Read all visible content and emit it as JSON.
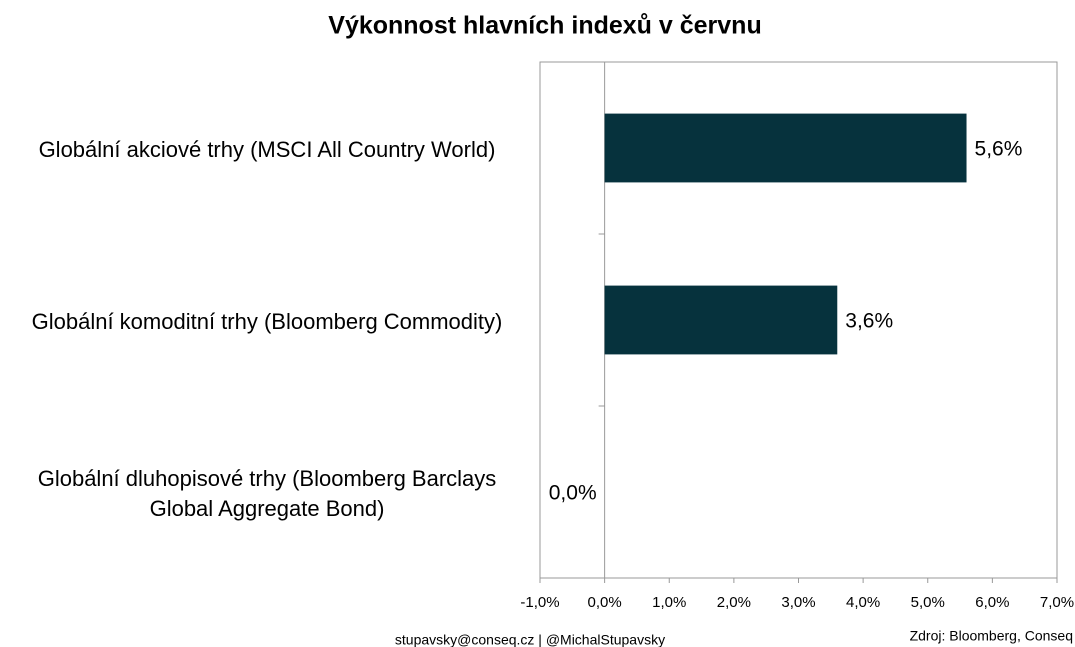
{
  "chart_data": {
    "type": "bar",
    "orientation": "horizontal",
    "title": "Výkonnost hlavních indexů v červnu",
    "categories": [
      "Globální akciové trhy (MSCI All Country World)",
      "Globální komoditní trhy (Bloomberg Commodity)",
      "Globální dluhopisové trhy (Bloomberg Barclays Global Aggregate Bond)"
    ],
    "values": [
      5.6,
      3.6,
      0.0
    ],
    "value_labels": [
      "5,6%",
      "3,6%",
      "0,0%"
    ],
    "color": "#06323d",
    "xlim": [
      -1,
      7
    ],
    "xticks": [
      {
        "value": -1,
        "label": "-1,0%"
      },
      {
        "value": 0,
        "label": "0,0%"
      },
      {
        "value": 1,
        "label": "1,0%"
      },
      {
        "value": 2,
        "label": "2,0%"
      },
      {
        "value": 3,
        "label": "3,0%"
      },
      {
        "value": 4,
        "label": "4,0%"
      },
      {
        "value": 5,
        "label": "5,0%"
      },
      {
        "value": 6,
        "label": "6,0%"
      },
      {
        "value": 7,
        "label": "7,0%"
      }
    ],
    "grid": false,
    "footer": "stupavsky@conseq.cz  |  @MichalStupavsky",
    "source": "Zdroj: Bloomberg, Conseq"
  }
}
